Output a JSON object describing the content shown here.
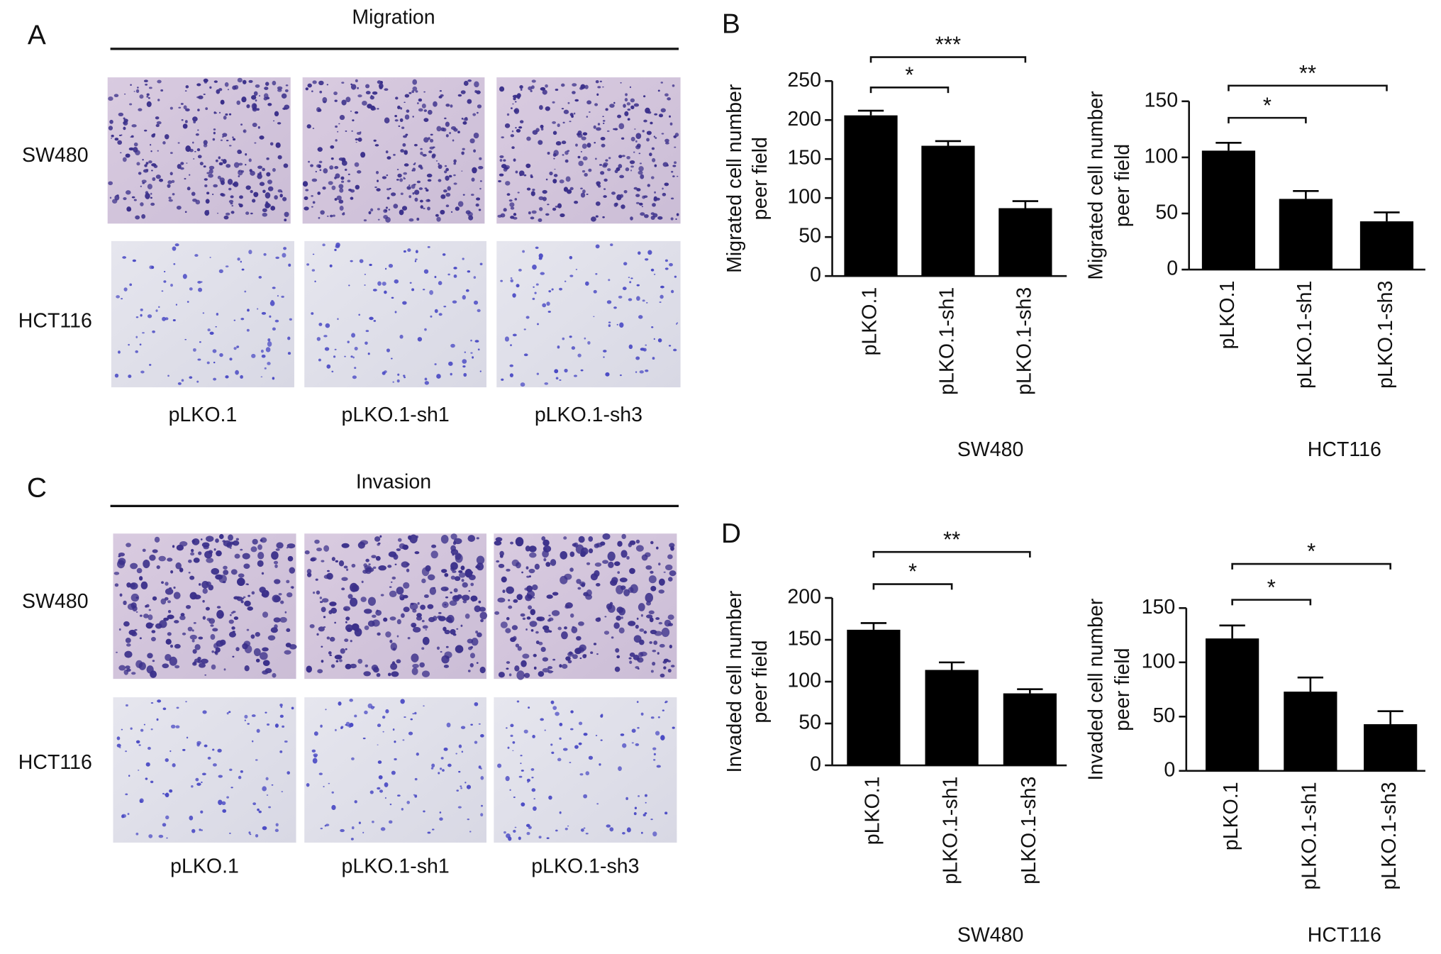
{
  "panels": [
    {
      "label": "A",
      "title": "Migration",
      "rows": [
        "SW480",
        "HCT116"
      ],
      "columns": [
        "pLKO.1",
        "pLKO.1-sh1",
        "pLKO.1-sh3"
      ]
    },
    {
      "label": "C",
      "title": "Invasion",
      "rows": [
        "SW480",
        "HCT116"
      ],
      "columns": [
        "pLKO.1",
        "pLKO.1-sh1",
        "pLKO.1-sh3"
      ]
    }
  ],
  "chart_labels": [
    "B",
    "D"
  ],
  "chart_data": [
    {
      "type": "bar",
      "ylabel": [
        "Migrated cell number",
        "peer field"
      ],
      "xlabel": "SW480",
      "categories": [
        "pLKO.1",
        "pLKO.1-sh1",
        "pLKO.1-sh3"
      ],
      "values": [
        206,
        167,
        87
      ],
      "errors": [
        6,
        6,
        9
      ],
      "color": "#000000",
      "ylim": [
        0,
        250
      ],
      "yticks": [
        0,
        50,
        100,
        150,
        200,
        250
      ],
      "significance": [
        "*",
        "***"
      ]
    },
    {
      "type": "bar",
      "ylabel": [
        "Migrated cell number",
        "peer field"
      ],
      "xlabel": "HCT116",
      "categories": [
        "pLKO.1",
        "pLKO.1-sh1",
        "pLKO.1-sh3"
      ],
      "values": [
        106,
        63,
        43
      ],
      "errors": [
        7,
        7,
        8
      ],
      "color": "#000000",
      "ylim": [
        0,
        150
      ],
      "yticks": [
        0,
        50,
        100,
        150
      ],
      "significance": [
        "*",
        "**"
      ]
    },
    {
      "type": "bar",
      "ylabel": [
        "Invaded cell number",
        "peer field"
      ],
      "xlabel": "SW480",
      "categories": [
        "pLKO.1",
        "pLKO.1-sh1",
        "pLKO.1-sh3"
      ],
      "values": [
        162,
        114,
        86
      ],
      "errors": [
        8,
        9,
        5
      ],
      "color": "#000000",
      "ylim": [
        0,
        200
      ],
      "yticks": [
        0,
        50,
        100,
        150,
        200
      ],
      "significance": [
        "*",
        "**"
      ]
    },
    {
      "type": "bar",
      "ylabel": [
        "Invaded cell number",
        "peer field"
      ],
      "xlabel": "HCT116",
      "categories": [
        "pLKO.1",
        "pLKO.1-sh1",
        "pLKO.1-sh3"
      ],
      "values": [
        122,
        73,
        43
      ],
      "errors": [
        12,
        13,
        12
      ],
      "color": "#000000",
      "ylim": [
        0,
        150
      ],
      "yticks": [
        0,
        50,
        100,
        150
      ],
      "significance": [
        "*",
        "*"
      ]
    }
  ]
}
